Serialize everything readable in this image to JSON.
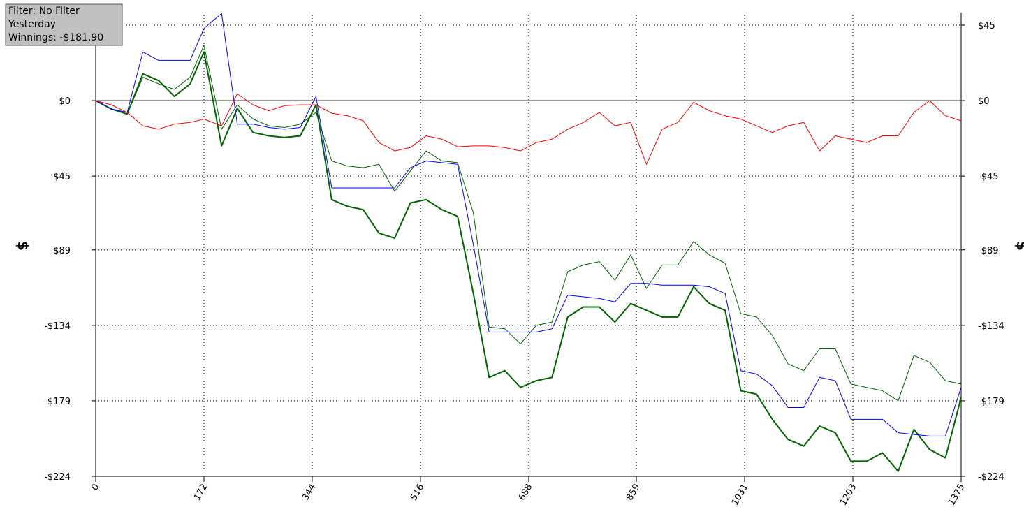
{
  "info": {
    "lines": [
      "Filter: No Filter",
      "Yesterday",
      "Winnings: -$181.90"
    ]
  },
  "chart_data": {
    "type": "line",
    "ylabel": "$",
    "x": [
      0,
      25,
      50,
      75,
      100,
      125,
      150,
      172,
      200,
      225,
      250,
      275,
      300,
      325,
      350,
      375,
      400,
      425,
      450,
      475,
      500,
      525,
      550,
      575,
      600,
      625,
      650,
      675,
      700,
      725,
      750,
      775,
      800,
      825,
      850,
      875,
      900,
      925,
      950,
      975,
      1000,
      1025,
      1050,
      1075,
      1100,
      1125,
      1150,
      1175,
      1200,
      1225,
      1250,
      1275,
      1300,
      1325,
      1350,
      1375
    ],
    "xlim": [
      0,
      1375
    ],
    "xticks": [
      0,
      172,
      344,
      516,
      688,
      859,
      1031,
      1203,
      1375
    ],
    "ylim": [
      -224,
      52.5
    ],
    "yticks": [
      {
        "value": 45,
        "label": "$45"
      },
      {
        "value": 0,
        "label": "$0"
      },
      {
        "value": -45,
        "label": "-$45"
      },
      {
        "value": -89,
        "label": "-$89"
      },
      {
        "value": -134,
        "label": "-$134"
      },
      {
        "value": -179,
        "label": "-$179"
      },
      {
        "value": -224,
        "label": "-$224"
      }
    ],
    "grid": true,
    "series": [
      {
        "color": "#006400",
        "width": 2,
        "values": [
          0,
          -5,
          -8,
          16,
          12,
          2.5,
          10,
          29,
          -27,
          -4.6,
          -19,
          -21,
          -22,
          -21,
          -2.5,
          -59,
          -63,
          -65,
          -79,
          -82,
          -61,
          -59,
          -65,
          -69,
          -115,
          -165,
          -161,
          -171,
          -167,
          -165,
          -129,
          -123,
          -123,
          -132,
          -121,
          -125,
          -129,
          -129,
          -111,
          -121,
          -125,
          -173,
          -175,
          -190,
          -202,
          -206,
          -194,
          -198,
          -215,
          -215,
          -210,
          -221,
          -196,
          -208,
          -213,
          -177
        ]
      },
      {
        "color": "#006400",
        "width": 1,
        "values": [
          0,
          -5,
          -8,
          14,
          10,
          6.7,
          14,
          33,
          -17,
          -2.5,
          -11,
          -15,
          -16,
          -14,
          -7,
          -36,
          -39,
          -40,
          -38,
          -54,
          -42,
          -30,
          -36,
          -37,
          -67,
          -135,
          -136,
          -145,
          -134,
          -132,
          -102,
          -98,
          -96,
          -107,
          -92,
          -112,
          -98,
          -98,
          -84,
          -92,
          -97,
          -127,
          -129,
          -140,
          -157,
          -161,
          -148,
          -148,
          -169,
          -171,
          -173,
          -179,
          -152,
          -156,
          -167,
          -169
        ]
      },
      {
        "color": "#0000ff",
        "width": 1,
        "values": [
          0,
          -5,
          -7,
          29,
          24,
          24,
          24,
          43,
          52,
          -14,
          -14,
          -16,
          -17,
          -16,
          2.5,
          -52,
          -52,
          -52,
          -52,
          -52,
          -40,
          -36,
          -37,
          -38,
          -86,
          -138,
          -138,
          -138,
          -138,
          -136,
          -116,
          -117,
          -118,
          -120,
          -109,
          -109,
          -110,
          -110,
          -110,
          -111,
          -115,
          -161,
          -163,
          -170,
          -183,
          -183,
          -165,
          -167,
          -190,
          -190,
          -190,
          -198,
          -199,
          -200,
          -200,
          -171
        ]
      },
      {
        "color": "#ff0000",
        "width": 1,
        "values": [
          0,
          -2.5,
          -7,
          -15,
          -17,
          -14,
          -13,
          -11,
          -15,
          4,
          -2.5,
          -6,
          -3,
          -2.5,
          -2.5,
          -7.5,
          -9,
          -12,
          -25,
          -30,
          -28,
          -21,
          -23,
          -27.5,
          -27,
          -27,
          -28,
          -30,
          -25,
          -23,
          -17,
          -13,
          -7,
          -15,
          -13,
          -38,
          -17,
          -13,
          -1,
          -6,
          -9,
          -11,
          -15,
          -19,
          -15,
          -13,
          -30,
          -21,
          -23,
          -25,
          -21,
          -21,
          -7,
          0,
          -9,
          -12
        ]
      }
    ]
  }
}
